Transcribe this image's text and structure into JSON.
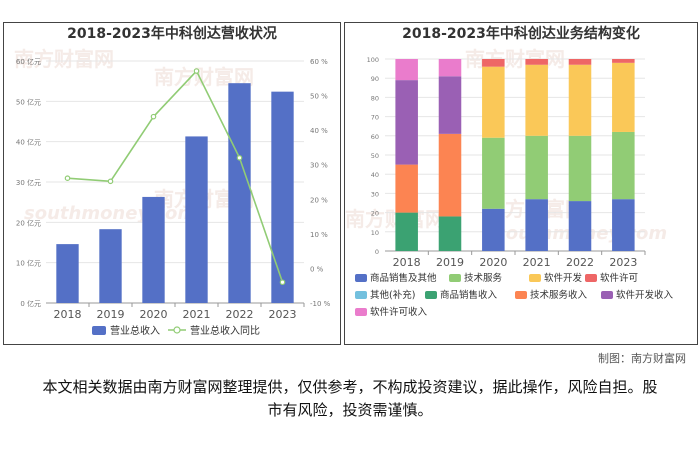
{
  "watermark": {
    "cn": "南方财富网",
    "en": "southmoney.com"
  },
  "credit": "制图：南方财富网",
  "disclaimer": "本文相关数据由南方财富网整理提供，仅供参考，不构成投资建议，据此操作，风险自担。股市有风险，投资需谨慎。",
  "chart_data": [
    {
      "type": "bar",
      "title": "2018-2023年中科创达营收状况",
      "categories": [
        "2018",
        "2019",
        "2020",
        "2021",
        "2022",
        "2023"
      ],
      "series": [
        {
          "name": "营业总收入",
          "kind": "bar",
          "axis": "left",
          "color": "#5470c6",
          "values": [
            14.6,
            18.3,
            26.3,
            41.3,
            54.5,
            52.4
          ]
        },
        {
          "name": "营业总收入同比",
          "kind": "line",
          "axis": "right",
          "color": "#91cc75",
          "values": [
            26.1,
            25.2,
            43.9,
            57.1,
            32.0,
            -4.0
          ]
        }
      ],
      "left_axis": {
        "min": 0,
        "max": 60,
        "ticks": [
          0,
          10,
          20,
          30,
          40,
          50,
          60
        ],
        "unit": "亿元"
      },
      "right_axis": {
        "min": -10,
        "max": 60,
        "ticks": [
          -10,
          0,
          10,
          20,
          30,
          40,
          50,
          60
        ],
        "unit": "%"
      },
      "legend_position": "bottom"
    },
    {
      "type": "bar",
      "stacked": "percent",
      "title": "2018-2023年中科创达业务结构变化",
      "categories": [
        "2018",
        "2019",
        "2020",
        "2021",
        "2022",
        "2023"
      ],
      "y_axis": {
        "min": 0,
        "max": 100,
        "ticks": [
          0,
          10,
          20,
          30,
          40,
          50,
          60,
          70,
          80,
          90,
          100
        ]
      },
      "series": [
        {
          "name": "商品销售及其他",
          "color": "#5470c6",
          "values": [
            0,
            0,
            22,
            27,
            26,
            27
          ]
        },
        {
          "name": "技术服务",
          "color": "#91cc75",
          "values": [
            0,
            0,
            37,
            33,
            34,
            35
          ]
        },
        {
          "name": "软件开发",
          "color": "#fac858",
          "values": [
            0,
            0,
            37,
            37,
            37,
            36
          ]
        },
        {
          "name": "软件许可",
          "color": "#ee6666",
          "values": [
            0,
            0,
            4,
            3,
            3,
            2
          ]
        },
        {
          "name": "其他(补充)",
          "color": "#73c0de",
          "values": [
            0,
            0,
            0,
            0,
            0,
            0
          ]
        },
        {
          "name": "商品销售收入",
          "color": "#3ba272",
          "values": [
            20,
            18,
            0,
            0,
            0,
            0
          ]
        },
        {
          "name": "技术服务收入",
          "color": "#fc8452",
          "values": [
            25,
            43,
            0,
            0,
            0,
            0
          ]
        },
        {
          "name": "软件开发收入",
          "color": "#9a60b4",
          "values": [
            44,
            30,
            0,
            0,
            0,
            0
          ]
        },
        {
          "name": "软件许可收入",
          "color": "#ea7ccc",
          "values": [
            11,
            9,
            0,
            0,
            0,
            0
          ]
        }
      ],
      "legend_position": "bottom"
    }
  ]
}
